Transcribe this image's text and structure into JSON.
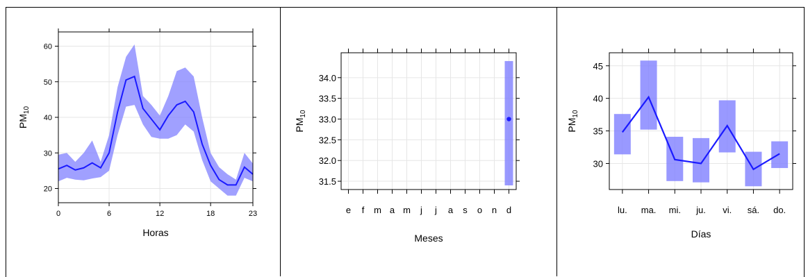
{
  "chart_data": [
    {
      "type": "area",
      "ylabel_main": "PM",
      "ylabel_sub": "10",
      "xlabel": "Horas",
      "xticks": [
        "0",
        "6",
        "12",
        "18",
        "23"
      ],
      "yticks": [
        "20",
        "30",
        "40",
        "50",
        "60"
      ],
      "ylim": [
        16,
        64
      ],
      "xlim": [
        0,
        23
      ],
      "colors": {
        "line": "#1a1aff",
        "band": "#8080ff"
      },
      "x": [
        0,
        1,
        2,
        3,
        4,
        5,
        6,
        7,
        8,
        9,
        10,
        11,
        12,
        13,
        14,
        15,
        16,
        17,
        18,
        19,
        20,
        21,
        22,
        23
      ],
      "mean": [
        25.5,
        26.5,
        25.2,
        25.8,
        27.2,
        25.8,
        30.0,
        41.5,
        50.5,
        51.5,
        42.5,
        39.5,
        36.5,
        40.5,
        43.5,
        44.5,
        41.5,
        32.5,
        26.5,
        22.5,
        21.0,
        21.0,
        26.0,
        24.0
      ],
      "lower": [
        22.0,
        23.0,
        22.5,
        22.3,
        22.8,
        23.2,
        25.0,
        35.0,
        43.0,
        43.5,
        38.0,
        34.5,
        34.0,
        34.0,
        35.0,
        38.0,
        36.0,
        28.0,
        22.0,
        20.0,
        18.0,
        18.0,
        23.0,
        22.0
      ],
      "upper": [
        29.5,
        30.0,
        27.5,
        30.0,
        33.5,
        27.5,
        35.0,
        48.5,
        57.0,
        60.5,
        46.0,
        43.5,
        40.5,
        46.0,
        53.0,
        54.0,
        51.5,
        40.0,
        30.0,
        26.0,
        24.0,
        22.5,
        30.0,
        27.0
      ]
    },
    {
      "type": "bar",
      "ylabel_main": "PM",
      "ylabel_sub": "10",
      "xlabel": "Meses",
      "categories": [
        "e",
        "f",
        "m",
        "a",
        "m",
        "j",
        "j",
        "a",
        "s",
        "o",
        "n",
        "d"
      ],
      "yticks": [
        "31.5",
        "32.0",
        "32.5",
        "33.0",
        "33.5",
        "34.0"
      ],
      "ylim": [
        31.3,
        34.6
      ],
      "colors": {
        "point": "#1a1aff",
        "band": "#8080ff"
      },
      "values": [
        null,
        null,
        null,
        null,
        null,
        null,
        null,
        null,
        null,
        null,
        null,
        33.0
      ],
      "lower": [
        null,
        null,
        null,
        null,
        null,
        null,
        null,
        null,
        null,
        null,
        null,
        31.4
      ],
      "upper": [
        null,
        null,
        null,
        null,
        null,
        null,
        null,
        null,
        null,
        null,
        null,
        34.4
      ]
    },
    {
      "type": "line",
      "ylabel_main": "PM",
      "ylabel_sub": "10",
      "xlabel": "Días",
      "categories": [
        "lu.",
        "ma.",
        "mi.",
        "ju.",
        "vi.",
        "sá.",
        "do."
      ],
      "yticks": [
        "30",
        "35",
        "40",
        "45"
      ],
      "ylim": [
        26,
        47
      ],
      "colors": {
        "line": "#1a1aff",
        "band": "#8080ff"
      },
      "values": [
        34.8,
        40.2,
        30.6,
        30.0,
        35.8,
        29.1,
        31.5
      ],
      "lower": [
        31.4,
        35.2,
        27.3,
        27.1,
        31.7,
        26.5,
        29.3
      ],
      "upper": [
        37.6,
        45.8,
        34.1,
        33.9,
        39.7,
        31.8,
        33.4
      ]
    }
  ]
}
